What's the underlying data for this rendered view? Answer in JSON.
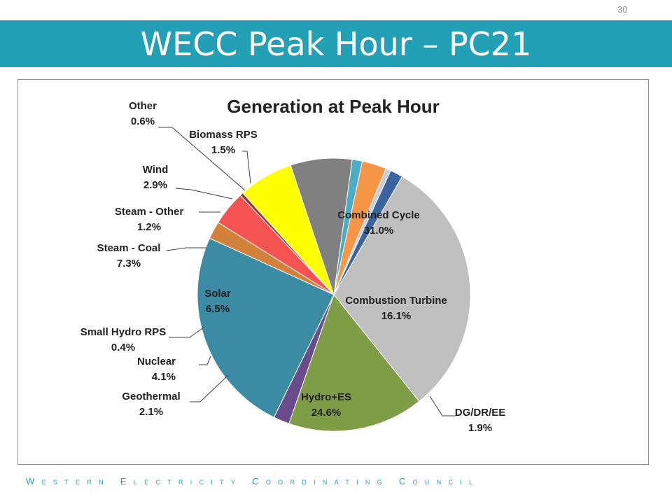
{
  "slide": {
    "page_number": "30",
    "title": "WECC Peak Hour – PC21",
    "footer": "Western Electricity Coordinating Council"
  },
  "colors": {
    "title_bar": "#23a0b6",
    "footer_text": "#23a0b6"
  },
  "chart_data": {
    "type": "pie",
    "title": "Generation at Peak Hour",
    "start_angle_deg": -60,
    "direction": "clockwise",
    "slices": [
      {
        "label": "Combined Cycle",
        "value": 31.0,
        "display": "31.0%",
        "color": "#bfbfbf",
        "label_placement": "inside"
      },
      {
        "label": "Combustion Turbine",
        "value": 16.1,
        "display": "16.1%",
        "color": "#7f9c46",
        "label_placement": "inside"
      },
      {
        "label": "DG/DR/EE",
        "value": 1.9,
        "display": "1.9%",
        "color": "#6a4c8a",
        "label_placement": "outside"
      },
      {
        "label": "Hydro+ES",
        "value": 24.6,
        "display": "24.6%",
        "color": "#3b8ba5",
        "label_placement": "inside"
      },
      {
        "label": "Geothermal",
        "value": 2.1,
        "display": "2.1%",
        "color": "#d3803a",
        "label_placement": "outside"
      },
      {
        "label": "Nuclear",
        "value": 4.1,
        "display": "4.1%",
        "color": "#f55352",
        "label_placement": "outside"
      },
      {
        "label": "Small Hydro RPS",
        "value": 0.4,
        "display": "0.4%",
        "color": "#8b3a3a",
        "label_placement": "outside"
      },
      {
        "label": "Solar",
        "value": 6.5,
        "display": "6.5%",
        "color": "#ffff00",
        "label_placement": "inside"
      },
      {
        "label": "Steam - Coal",
        "value": 7.3,
        "display": "7.3%",
        "color": "#808080",
        "label_placement": "outside"
      },
      {
        "label": "Steam - Other",
        "value": 1.2,
        "display": "1.2%",
        "color": "#4bacc6",
        "label_placement": "outside"
      },
      {
        "label": "Wind",
        "value": 2.9,
        "display": "2.9%",
        "color": "#f79646",
        "label_placement": "outside"
      },
      {
        "label": "Other",
        "value": 0.6,
        "display": "0.6%",
        "color": "#c5cde0",
        "label_placement": "outside"
      },
      {
        "label": "Biomass RPS",
        "value": 1.5,
        "display": "1.5%",
        "color": "#3c64a0",
        "label_placement": "outside"
      }
    ],
    "legend": "none"
  }
}
